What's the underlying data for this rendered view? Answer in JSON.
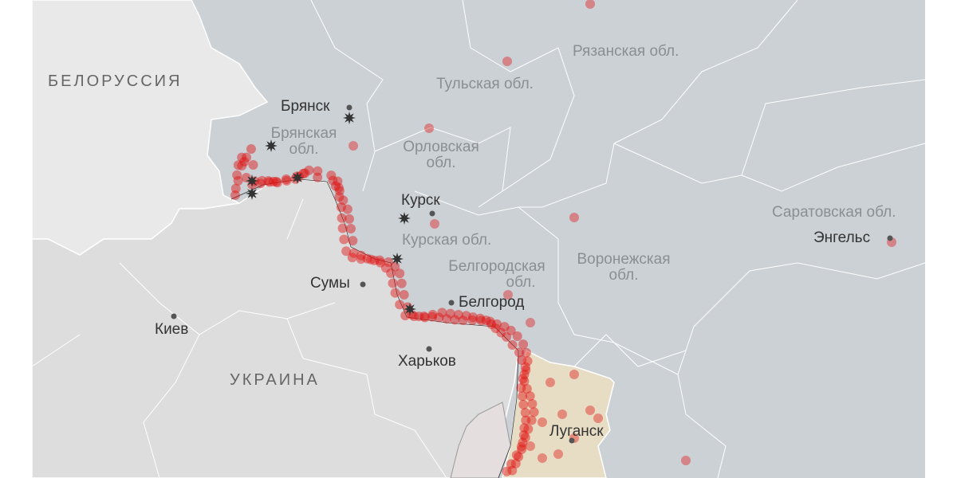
{
  "colors": {
    "russia": "#cbd1d5",
    "belarus": "#e9e9e9",
    "ukraine": "#dddddd",
    "lnr": "#e7ddc4",
    "attack_dot": "#e01010",
    "explosion": "#333333",
    "border": "#ffffff"
  },
  "countries": {
    "belarus": "БЕЛОРУССИЯ",
    "ukraine": "УКРАИНА"
  },
  "cities": {
    "bryansk": "Брянск",
    "kursk": "Курск",
    "sumy": "Сумы",
    "belgorod": "Белгород",
    "kharkov": "Харьков",
    "kiev": "Киев",
    "lugansk": "Луганск",
    "engels": "Энгельс"
  },
  "regions": {
    "ryazan": "Рязанская обл.",
    "tula": "Тульская обл.",
    "bryansk_1": "Брянская",
    "bryansk_2": "обл.",
    "orel_1": "Орловская",
    "orel_2": "обл.",
    "kursk": "Курская обл.",
    "belgorod_1": "Белгородская",
    "belgorod_2": "обл.",
    "voronezh_1": "Воронежская",
    "voronezh_2": "обл.",
    "saratov": "Саратовская обл."
  },
  "icons": {
    "explosion": "explosion-icon",
    "city": "city-dot-icon",
    "attack": "attack-dot-icon"
  }
}
